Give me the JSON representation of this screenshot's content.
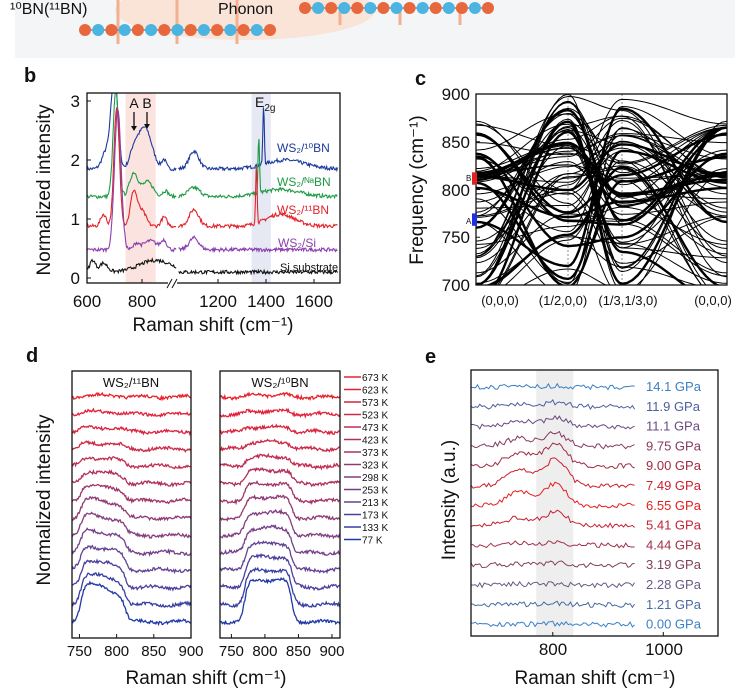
{
  "top_strip": {
    "isotope_label": "¹⁰BN(¹¹BN)",
    "phonon_label": "Phonon",
    "atom_colors": [
      "#e8683e",
      "#4cb4e0"
    ],
    "background": "#f4f5f7"
  },
  "panels": {
    "b": {
      "label": "b",
      "peak_a": "A",
      "peak_b": "B",
      "e2g_main": "E",
      "e2g_sub": "2g"
    },
    "c": {
      "label": "c",
      "marker_a": "A",
      "marker_b": "B"
    },
    "d": {
      "label": "d"
    },
    "e": {
      "label": "e"
    }
  },
  "chart_data": [
    {
      "panel": "b",
      "type": "line",
      "xlabel": "Raman shift (cm⁻¹)",
      "ylabel": "Normalized intensity",
      "xticks": [
        "600",
        "800",
        "1200",
        "1400",
        "1600"
      ],
      "yticks": [
        "0",
        "1",
        "2",
        "3"
      ],
      "ylim": [
        -0.1,
        3.1
      ],
      "axis_break": true,
      "shaded_regions": [
        {
          "from": 740,
          "to": 850,
          "color": "#fbe3df"
        },
        {
          "from": 1340,
          "to": 1420,
          "color": "#e6e8f4"
        }
      ],
      "series": [
        {
          "name": "WS₂/¹⁰BN",
          "color": "#1c3a9c",
          "baseline": 1.85,
          "peaks": [
            [
              700,
              1.6,
              12
            ],
            [
              670,
              0.3,
              15
            ],
            [
              810,
              0.7,
              25
            ],
            [
              770,
              0.25,
              15
            ],
            [
              880,
              0.15,
              8
            ],
            [
              1100,
              0.3,
              20
            ],
            [
              1390,
              1.0,
              3
            ],
            [
              1480,
              0.15,
              80
            ]
          ]
        },
        {
          "name": "WS₂/ᴺᵃBN",
          "color": "#1f9a45",
          "baseline": 1.38,
          "peaks": [
            [
              705,
              1.8,
              10
            ],
            [
              770,
              0.4,
              15
            ],
            [
              820,
              0.25,
              20
            ],
            [
              885,
              0.1,
              10
            ],
            [
              1100,
              0.15,
              25
            ],
            [
              1370,
              0.95,
              3
            ],
            [
              1460,
              0.12,
              80
            ]
          ]
        },
        {
          "name": "WS₂/¹¹BN",
          "color": "#e4222a",
          "baseline": 0.88,
          "peaks": [
            [
              708,
              2.0,
              10
            ],
            [
              660,
              0.2,
              10
            ],
            [
              770,
              0.58,
              12
            ],
            [
              800,
              0.25,
              15
            ],
            [
              880,
              0.15,
              10
            ],
            [
              1100,
              0.28,
              20
            ],
            [
              1360,
              1.0,
              3
            ],
            [
              1460,
              0.2,
              60
            ]
          ]
        },
        {
          "name": "WS₂/Si",
          "color": "#8b3fae",
          "baseline": 0.48,
          "peaks": [
            [
              712,
              2.4,
              12
            ],
            [
              780,
              0.1,
              10
            ],
            [
              830,
              0.15,
              25
            ],
            [
              880,
              0.15,
              10
            ],
            [
              1100,
              0.2,
              20
            ]
          ]
        },
        {
          "name": "Si substrate",
          "color": "#111111",
          "baseline": 0.1,
          "peaks": [
            [
              620,
              0.2,
              10
            ],
            [
              660,
              0.15,
              15
            ],
            [
              850,
              0.2,
              60
            ]
          ]
        }
      ]
    },
    {
      "panel": "c",
      "type": "line",
      "ylabel": "Frequency (cm⁻¹)",
      "ylim": [
        700,
        900
      ],
      "yticks": [
        "700",
        "750",
        "800",
        "850",
        "900"
      ],
      "xticks": [
        "(0,0,0)",
        "(1/2,0,0)",
        "(1/3,1/3,0)",
        "(0,0,0)"
      ],
      "markers": [
        {
          "name": "B",
          "from": 805,
          "to": 818,
          "color": "#e42020"
        },
        {
          "name": "A",
          "from": 762,
          "to": 775,
          "color": "#2030e0"
        }
      ]
    },
    {
      "panel": "d",
      "type": "line",
      "xlabel": "Raman shift (cm⁻¹)",
      "ylabel": "Normalized intensity",
      "subplots": [
        {
          "title": "WS₂/¹¹BN",
          "xticks": [
            "750",
            "800",
            "850",
            "900"
          ],
          "xlim": [
            740,
            900
          ],
          "hump": [
            752,
            812
          ]
        },
        {
          "title": "WS₂/¹⁰BN",
          "xticks": [
            "750",
            "800",
            "850",
            "900"
          ],
          "xlim": [
            733,
            912
          ],
          "hump": [
            770,
            840
          ]
        }
      ],
      "series": [
        {
          "name": "673 K",
          "color": "#e8202a",
          "amplitude": 0.05
        },
        {
          "name": "623 K",
          "color": "#e2223a",
          "amplitude": 0.08
        },
        {
          "name": "573 K",
          "color": "#d8243e",
          "amplitude": 0.12
        },
        {
          "name": "523 K",
          "color": "#cc2a48",
          "amplitude": 0.18
        },
        {
          "name": "473 K",
          "color": "#c02e52",
          "amplitude": 0.25
        },
        {
          "name": "423 K",
          "color": "#b0305c",
          "amplitude": 0.35
        },
        {
          "name": "373 K",
          "color": "#a03468",
          "amplitude": 0.45
        },
        {
          "name": "323 K",
          "color": "#903a74",
          "amplitude": 0.55
        },
        {
          "name": "298 K",
          "color": "#843e80",
          "amplitude": 0.6
        },
        {
          "name": "253 K",
          "color": "#74408a",
          "amplitude": 0.65
        },
        {
          "name": "213 K",
          "color": "#624294",
          "amplitude": 0.7
        },
        {
          "name": "173 K",
          "color": "#4c409c",
          "amplitude": 0.8
        },
        {
          "name": "133 K",
          "color": "#383ea2",
          "amplitude": 0.9
        },
        {
          "name": "77 K",
          "color": "#1f3aa6",
          "amplitude": 1.1
        }
      ]
    },
    {
      "panel": "e",
      "type": "line",
      "xlabel": "Raman shift (cm⁻¹)",
      "ylabel": "Intensity (a.u.)",
      "xticks": [
        "800",
        "1000"
      ],
      "xlim": [
        652,
        1099
      ],
      "shaded_region": {
        "from": 770,
        "to": 837,
        "color": "#eeeeee"
      },
      "series": [
        {
          "name": "14.1 GPa",
          "color": "#3a7fc4",
          "amplitude": 0.05
        },
        {
          "name": "11.9 GPa",
          "color": "#4d5f9e",
          "amplitude": 0.2
        },
        {
          "name": "11.1 GPa",
          "color": "#6a4a82",
          "amplitude": 0.4
        },
        {
          "name": "9.75 GPa",
          "color": "#86395f",
          "amplitude": 0.6
        },
        {
          "name": "9.00 GPa",
          "color": "#a22a44",
          "amplitude": 1.0
        },
        {
          "name": "7.49 GPa",
          "color": "#cc2030",
          "amplitude": 1.2
        },
        {
          "name": "6.55 GPa",
          "color": "#e42020",
          "amplitude": 1.0
        },
        {
          "name": "5.41 GPa",
          "color": "#c42232",
          "amplitude": 0.6
        },
        {
          "name": "4.44 GPa",
          "color": "#a2304a",
          "amplitude": 0.15
        },
        {
          "name": "3.19 GPa",
          "color": "#80405c",
          "amplitude": 0.1
        },
        {
          "name": "2.28 GPa",
          "color": "#6a5a82",
          "amplitude": 0.06
        },
        {
          "name": "1.21 GPa",
          "color": "#4a6aa2",
          "amplitude": 0.05
        },
        {
          "name": "0.00 GPa",
          "color": "#3a80c8",
          "amplitude": 0.05
        }
      ]
    }
  ]
}
